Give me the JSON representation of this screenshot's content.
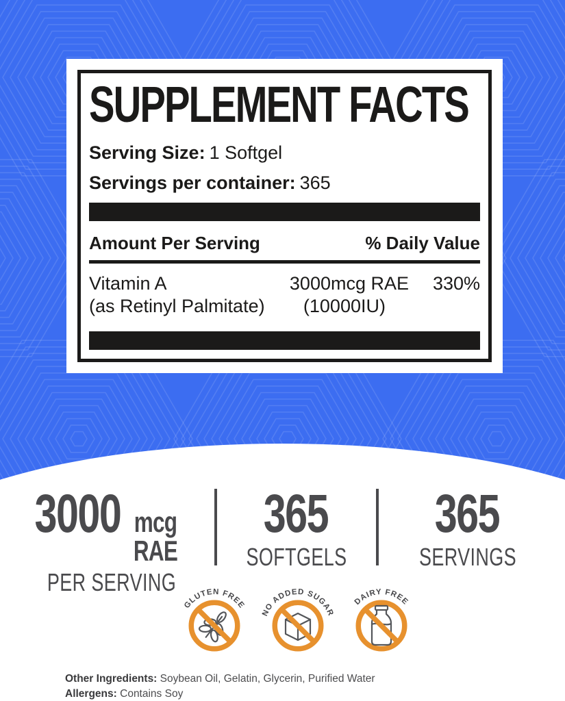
{
  "panel": {
    "title": "SUPPLEMENT FACTS",
    "serving_size_label": "Serving Size:",
    "serving_size_value": "1 Softgel",
    "servings_label": "Servings per container:",
    "servings_value": "365",
    "amount_header": "Amount Per Serving",
    "dv_header": "% Daily Value",
    "rows": [
      {
        "name_line1": "Vitamin A",
        "name_line2": "(as Retinyl Palmitate)",
        "amount_line1": "3000mcg RAE",
        "amount_line2": "(10000IU)",
        "dv": "330%"
      }
    ]
  },
  "stats": [
    {
      "value": "3000",
      "unit": "mcg RAE",
      "label": "PER SERVING"
    },
    {
      "value": "365",
      "unit": "",
      "label": "SOFTGELS"
    },
    {
      "value": "365",
      "unit": "",
      "label": "SERVINGS"
    }
  ],
  "badges": [
    {
      "label": "GLUTEN FREE",
      "icon": "wheat-icon"
    },
    {
      "label": "NO ADDED SUGAR",
      "icon": "sugar-cube-icon"
    },
    {
      "label": "DAIRY FREE",
      "icon": "milk-bottle-icon"
    }
  ],
  "footer": {
    "other_ingredients_label": "Other Ingredients:",
    "other_ingredients_value": "Soybean Oil, Gelatin, Glycerin, Purified Water",
    "allergens_label": "Allergens:",
    "allergens_value": "Contains Soy"
  },
  "colors": {
    "hero_blue": "#3C6DF1",
    "pattern_line": "#FFFFFF",
    "panel_black": "#1B1A19",
    "stat_gray": "#4A4A4D",
    "badge_orange": "#E7912E",
    "badge_icon_gray": "#54565A"
  }
}
